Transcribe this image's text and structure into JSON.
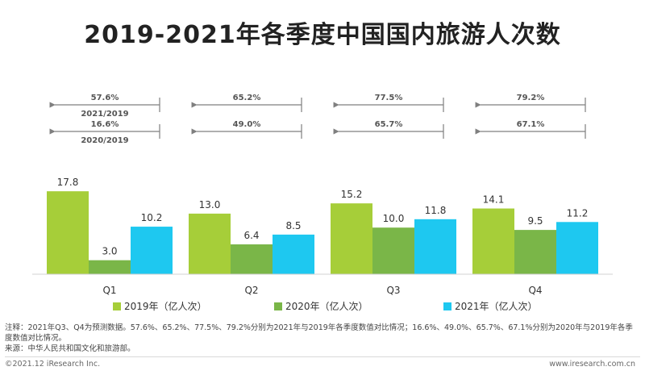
{
  "chart_data": {
    "type": "bar",
    "title": "2019-2021年各季度中国国内旅游人次数",
    "categories": [
      "Q1",
      "Q2",
      "Q3",
      "Q4"
    ],
    "series": [
      {
        "name": "2019年（亿人次）",
        "color": "#a6ce39",
        "values": [
          17.8,
          13.0,
          15.2,
          14.1
        ]
      },
      {
        "name": "2020年（亿人次）",
        "color": "#7ab648",
        "values": [
          3.0,
          6.4,
          10.0,
          9.5
        ]
      },
      {
        "name": "2021年（亿人次）",
        "color": "#1ec8f0",
        "values": [
          10.2,
          8.5,
          11.8,
          11.2
        ]
      }
    ],
    "ylim": [
      0,
      18
    ],
    "comparisons": {
      "row1": {
        "label": "2021/2019",
        "values": [
          "57.6%",
          "65.2%",
          "77.5%",
          "79.2%"
        ]
      },
      "row2": {
        "label": "2020/2019",
        "values": [
          "16.6%",
          "49.0%",
          "65.7%",
          "67.1%"
        ]
      }
    },
    "legend_position": "bottom"
  },
  "notes": {
    "line1": "注释：2021年Q3、Q4为预测数据。57.6%、65.2%、77.5%、79.2%分别为2021年与2019年各季度数值对比情况；16.6%、49.0%、65.7%、67.1%分别为2020年与2019年各季",
    "line2": "度数值对比情况。",
    "line3": "来源：中华人民共和国文化和旅游部。"
  },
  "footer": {
    "copyright": "©2021.12 iResearch Inc.",
    "website": "www.iresearch.com.cn"
  }
}
